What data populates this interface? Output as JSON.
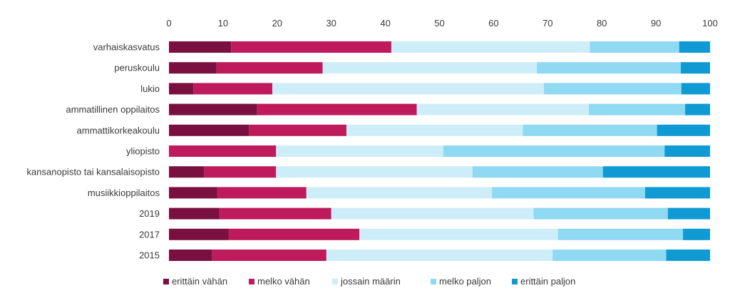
{
  "chart_data": {
    "type": "bar",
    "orientation": "horizontal",
    "stacked": true,
    "title": "",
    "xlabel": "",
    "ylabel": "",
    "xlim": [
      0,
      100
    ],
    "x_ticks": [
      0,
      10,
      20,
      30,
      40,
      50,
      60,
      70,
      80,
      90,
      100
    ],
    "x_axis_position": "top",
    "grid": false,
    "legend_position": "bottom",
    "categories": [
      "varhaiskasvatus",
      "peruskoulu",
      "lukio",
      "ammatillinen oppilaitos",
      "ammattikorkeakoulu",
      "yliopisto",
      "kansanopisto tai kansalaisopisto",
      "musiikkioppilaitos",
      "2019",
      "2017",
      "2015"
    ],
    "series": [
      {
        "name": "erittäin vähän",
        "color": "#7a1040",
        "values": [
          11.5,
          8.8,
          4.5,
          16.3,
          14.8,
          0,
          6.5,
          8.9,
          9.3,
          11.0,
          8.0
        ]
      },
      {
        "name": "melko vähän",
        "color": "#be1a5c",
        "values": [
          29.6,
          19.6,
          14.6,
          29.5,
          18.0,
          19.8,
          13.3,
          16.5,
          20.7,
          24.2,
          21.1
        ]
      },
      {
        "name": "jossain määrin",
        "color": "#cdeef9",
        "values": [
          36.7,
          39.6,
          50.2,
          31.8,
          32.6,
          30.9,
          36.3,
          34.3,
          37.4,
          36.7,
          41.8
        ]
      },
      {
        "name": "melko paljon",
        "color": "#8fd9f3",
        "values": [
          16.5,
          26.6,
          25.4,
          17.8,
          24.8,
          40.9,
          24.1,
          28.3,
          24.8,
          23.1,
          21.0
        ]
      },
      {
        "name": "erittäin paljon",
        "color": "#0f9ad4",
        "values": [
          5.7,
          5.4,
          5.3,
          4.6,
          9.8,
          8.4,
          19.8,
          12.0,
          7.8,
          5.0,
          8.1
        ]
      }
    ]
  }
}
